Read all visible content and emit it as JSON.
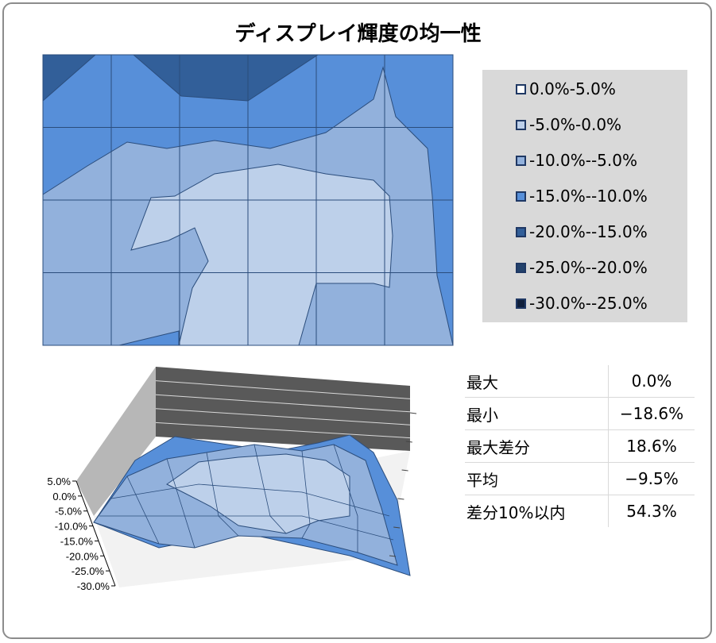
{
  "chart_data": [
    {
      "type": "contour",
      "title": "ディスプレイ輝度の均一性",
      "grid": true,
      "columns": 6,
      "rows": 4,
      "legend_placement": "right",
      "levels": [
        {
          "label": "0.0%-5.0%",
          "color": "#ffffff"
        },
        {
          "label": "-5.0%-0.0%",
          "color": "#bdd0ea"
        },
        {
          "label": "-10.0%--5.0%",
          "color": "#92b1dc"
        },
        {
          "label": "-15.0%--10.0%",
          "color": "#578fd9"
        },
        {
          "label": "-20.0%--15.0%",
          "color": "#325f99"
        },
        {
          "label": "-25.0%--20.0%",
          "color": "#23426c"
        },
        {
          "label": "-30.0%--25.0%",
          "color": "#10203c"
        }
      ]
    },
    {
      "type": "surface",
      "z_axis_ticks": [
        "5.0%",
        "0.0%",
        "-5.0%",
        "-10.0%",
        "-15.0%",
        "-20.0%",
        "-25.0%",
        "-30.0%"
      ],
      "zlim": [
        -30.0,
        5.0
      ]
    }
  ],
  "stats": [
    {
      "label": "最大",
      "value": "0.0%"
    },
    {
      "label": "最小",
      "value": "−18.6%"
    },
    {
      "label": "最大差分",
      "value": "18.6%"
    },
    {
      "label": "平均",
      "value": "−9.5%"
    },
    {
      "label": "差分10%以内",
      "value": "54.3%"
    }
  ]
}
